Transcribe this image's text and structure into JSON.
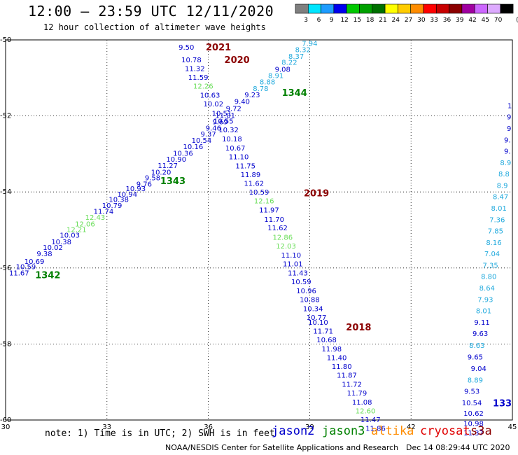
{
  "header": {
    "title": "12:00 – 23:59 UTC 12/11/2020",
    "subtitle": "12 hour collection of altimeter wave heights"
  },
  "legend": {
    "unit": "(ft)",
    "bins": [
      {
        "label": "3",
        "color": "#7f7f7f"
      },
      {
        "label": "6",
        "color": "#00e5ff"
      },
      {
        "label": "9",
        "color": "#1e9cff"
      },
      {
        "label": "12",
        "color": "#0000ee"
      },
      {
        "label": "15",
        "color": "#00c800"
      },
      {
        "label": "18",
        "color": "#00a000"
      },
      {
        "label": "21",
        "color": "#007000"
      },
      {
        "label": "24",
        "color": "#ffff00"
      },
      {
        "label": "27",
        "color": "#ffcc00"
      },
      {
        "label": "30",
        "color": "#ff8c00"
      },
      {
        "label": "33",
        "color": "#ff0000"
      },
      {
        "label": "36",
        "color": "#c80000"
      },
      {
        "label": "39",
        "color": "#8b0000"
      },
      {
        "label": "42",
        "color": "#a000a0"
      },
      {
        "label": "45",
        "color": "#cc66ff"
      },
      {
        "label": "70",
        "color": "#ddaaff"
      },
      {
        "label": "",
        "color": "#000000"
      }
    ]
  },
  "map": {
    "lon_ticks": [
      "30",
      "33",
      "36",
      "39",
      "42",
      "45"
    ],
    "lat_ticks": [
      "-50",
      "-52",
      "-54",
      "-56",
      "-58",
      "-60"
    ],
    "lon_range": [
      30,
      45
    ],
    "lat_range": [
      -50,
      -60
    ]
  },
  "colors": {
    "jason2": "#0000cc",
    "jason3": "#008000",
    "altika": "#ff8c00",
    "cryosat": "#e00000",
    "s3a": "#8b0000",
    "light_green": "#66dd55",
    "cyan": "#22aadd",
    "axis_grid": "#000000"
  },
  "tracks": [
    {
      "satellite": "jason3",
      "labels": [
        {
          "text": "1342",
          "lon": 31.25,
          "lat": -56.18
        },
        {
          "text": "1343",
          "lon": 34.95,
          "lat": -53.7
        },
        {
          "text": "1344",
          "lon": 38.55,
          "lat": -51.38
        }
      ],
      "points": [
        {
          "text": "11.67",
          "lon": 30.4,
          "lat": -56.12,
          "c": "jason2"
        },
        {
          "text": "10.59",
          "lon": 30.6,
          "lat": -55.96,
          "c": "jason2"
        },
        {
          "text": "10.69",
          "lon": 30.85,
          "lat": -55.82,
          "c": "jason2"
        },
        {
          "text": "9.38",
          "lon": 31.15,
          "lat": -55.62,
          "c": "jason2"
        },
        {
          "text": "10.02",
          "lon": 31.4,
          "lat": -55.45,
          "c": "jason2"
        },
        {
          "text": "10.38",
          "lon": 31.65,
          "lat": -55.3,
          "c": "jason2"
        },
        {
          "text": "10.03",
          "lon": 31.9,
          "lat": -55.13,
          "c": "jason2"
        },
        {
          "text": "12.21",
          "lon": 32.1,
          "lat": -54.98,
          "c": "light_green"
        },
        {
          "text": "12.06",
          "lon": 32.35,
          "lat": -54.83,
          "c": "light_green"
        },
        {
          "text": "12.43",
          "lon": 32.65,
          "lat": -54.66,
          "c": "light_green"
        },
        {
          "text": "11.74",
          "lon": 32.9,
          "lat": -54.5,
          "c": "jason2"
        },
        {
          "text": "10.79",
          "lon": 33.15,
          "lat": -54.35,
          "c": "jason2"
        },
        {
          "text": "10.38",
          "lon": 33.35,
          "lat": -54.19,
          "c": "jason2"
        },
        {
          "text": "10.94",
          "lon": 33.6,
          "lat": -54.05,
          "c": "jason2"
        },
        {
          "text": "10.93",
          "lon": 33.85,
          "lat": -53.9,
          "c": "jason2"
        },
        {
          "text": "9.76",
          "lon": 34.1,
          "lat": -53.78,
          "c": "jason2"
        },
        {
          "text": "9.58",
          "lon": 34.35,
          "lat": -53.62,
          "c": "jason2"
        },
        {
          "text": "10.20",
          "lon": 34.6,
          "lat": -53.47,
          "c": "jason2"
        },
        {
          "text": "11.27",
          "lon": 34.8,
          "lat": -53.3,
          "c": "jason2"
        },
        {
          "text": "10.90",
          "lon": 35.05,
          "lat": -53.13,
          "c": "jason2"
        },
        {
          "text": "10.36",
          "lon": 35.25,
          "lat": -52.97,
          "c": "jason2"
        },
        {
          "text": "10.16",
          "lon": 35.55,
          "lat": -52.8,
          "c": "jason2"
        },
        {
          "text": "10.54",
          "lon": 35.8,
          "lat": -52.63,
          "c": "jason2"
        },
        {
          "text": "9.37",
          "lon": 36.0,
          "lat": -52.47,
          "c": "jason2"
        },
        {
          "text": "9.46",
          "lon": 36.15,
          "lat": -52.31,
          "c": "jason2"
        },
        {
          "text": "9.69",
          "lon": 36.35,
          "lat": -52.15,
          "c": "jason2"
        },
        {
          "text": "11.01",
          "lon": 36.5,
          "lat": -51.98,
          "c": "jason2"
        },
        {
          "text": "9.72",
          "lon": 36.75,
          "lat": -51.8,
          "c": "jason2"
        },
        {
          "text": "9.40",
          "lon": 37.0,
          "lat": -51.61,
          "c": "jason2"
        },
        {
          "text": "9.23",
          "lon": 37.3,
          "lat": -51.44,
          "c": "jason2"
        },
        {
          "text": "8.78",
          "lon": 37.55,
          "lat": -51.27,
          "c": "cyan"
        },
        {
          "text": "8.88",
          "lon": 37.75,
          "lat": -51.1,
          "c": "cyan"
        },
        {
          "text": "8.91",
          "lon": 38.0,
          "lat": -50.93,
          "c": "cyan"
        },
        {
          "text": "9.08",
          "lon": 38.2,
          "lat": -50.76,
          "c": "jason2"
        },
        {
          "text": "8.22",
          "lon": 38.4,
          "lat": -50.58,
          "c": "cyan"
        },
        {
          "text": "8.37",
          "lon": 38.6,
          "lat": -50.42,
          "c": "cyan"
        },
        {
          "text": "8.32",
          "lon": 38.8,
          "lat": -50.25,
          "c": "cyan"
        },
        {
          "text": "7.94",
          "lon": 39.0,
          "lat": -50.08,
          "c": "cyan"
        }
      ]
    },
    {
      "satellite": "s3a",
      "labels": [
        {
          "text": "2021",
          "lon": 36.3,
          "lat": -50.18
        },
        {
          "text": "2020",
          "lon": 36.85,
          "lat": -50.52
        },
        {
          "text": "2019",
          "lon": 39.2,
          "lat": -54.02
        },
        {
          "text": "2018",
          "lon": 40.45,
          "lat": -57.55
        }
      ],
      "points": [
        {
          "text": "9.50",
          "lon": 35.35,
          "lat": -50.18,
          "c": "jason2"
        },
        {
          "text": "10.78",
          "lon": 35.5,
          "lat": -50.52,
          "c": "jason2"
        },
        {
          "text": "11.32",
          "lon": 35.6,
          "lat": -50.75,
          "c": "jason2"
        },
        {
          "text": "11.59",
          "lon": 35.7,
          "lat": -50.98,
          "c": "jason2"
        },
        {
          "text": "12.26",
          "lon": 35.85,
          "lat": -51.21,
          "c": "light_green"
        },
        {
          "text": "10.63",
          "lon": 36.05,
          "lat": -51.45,
          "c": "jason2"
        },
        {
          "text": "10.02",
          "lon": 36.15,
          "lat": -51.68,
          "c": "jason2"
        },
        {
          "text": "10.51",
          "lon": 36.4,
          "lat": -51.92,
          "c": "jason2"
        },
        {
          "text": "10.55",
          "lon": 36.45,
          "lat": -52.13,
          "c": "jason2"
        },
        {
          "text": "10.32",
          "lon": 36.6,
          "lat": -52.36,
          "c": "jason2"
        },
        {
          "text": "10.18",
          "lon": 36.7,
          "lat": -52.6,
          "c": "jason2"
        },
        {
          "text": "10.67",
          "lon": 36.8,
          "lat": -52.84,
          "c": "jason2"
        },
        {
          "text": "11.10",
          "lon": 36.9,
          "lat": -53.07,
          "c": "jason2"
        },
        {
          "text": "11.75",
          "lon": 37.1,
          "lat": -53.31,
          "c": "jason2"
        },
        {
          "text": "11.89",
          "lon": 37.25,
          "lat": -53.54,
          "c": "jason2"
        },
        {
          "text": "11.62",
          "lon": 37.35,
          "lat": -53.77,
          "c": "jason2"
        },
        {
          "text": "10.59",
          "lon": 37.5,
          "lat": -54.0,
          "c": "jason2"
        },
        {
          "text": "12.16",
          "lon": 37.65,
          "lat": -54.23,
          "c": "light_green"
        },
        {
          "text": "11.97",
          "lon": 37.8,
          "lat": -54.47,
          "c": "jason2"
        },
        {
          "text": "11.70",
          "lon": 37.95,
          "lat": -54.71,
          "c": "jason2"
        },
        {
          "text": "11.62",
          "lon": 38.05,
          "lat": -54.94,
          "c": "jason2"
        },
        {
          "text": "12.86",
          "lon": 38.2,
          "lat": -55.18,
          "c": "light_green"
        },
        {
          "text": "12.03",
          "lon": 38.3,
          "lat": -55.41,
          "c": "light_green"
        },
        {
          "text": "11.10",
          "lon": 38.45,
          "lat": -55.65,
          "c": "jason2"
        },
        {
          "text": "11.01",
          "lon": 38.5,
          "lat": -55.88,
          "c": "jason2"
        },
        {
          "text": "11.43",
          "lon": 38.65,
          "lat": -56.12,
          "c": "jason2"
        },
        {
          "text": "10.59",
          "lon": 38.75,
          "lat": -56.35,
          "c": "jason2"
        },
        {
          "text": "10.96",
          "lon": 38.9,
          "lat": -56.59,
          "c": "jason2"
        },
        {
          "text": "10.88",
          "lon": 39.0,
          "lat": -56.82,
          "c": "jason2"
        },
        {
          "text": "10.34",
          "lon": 39.1,
          "lat": -57.06,
          "c": "jason2"
        },
        {
          "text": "10.77",
          "lon": 39.2,
          "lat": -57.29,
          "c": "jason2"
        },
        {
          "text": "10.10",
          "lon": 39.25,
          "lat": -57.42,
          "c": "jason2"
        },
        {
          "text": "11.71",
          "lon": 39.4,
          "lat": -57.65,
          "c": "jason2"
        },
        {
          "text": "10.68",
          "lon": 39.5,
          "lat": -57.88,
          "c": "jason2"
        },
        {
          "text": "11.98",
          "lon": 39.65,
          "lat": -58.12,
          "c": "jason2"
        },
        {
          "text": "11.40",
          "lon": 39.8,
          "lat": -58.35,
          "c": "jason2"
        },
        {
          "text": "11.80",
          "lon": 39.95,
          "lat": -58.58,
          "c": "jason2"
        },
        {
          "text": "11.87",
          "lon": 40.1,
          "lat": -58.81,
          "c": "jason2"
        },
        {
          "text": "11.72",
          "lon": 40.25,
          "lat": -59.05,
          "c": "jason2"
        },
        {
          "text": "11.79",
          "lon": 40.4,
          "lat": -59.28,
          "c": "jason2"
        },
        {
          "text": "11.08",
          "lon": 40.55,
          "lat": -59.52,
          "c": "jason2"
        },
        {
          "text": "12.60",
          "lon": 40.65,
          "lat": -59.75,
          "c": "light_green"
        },
        {
          "text": "11.47",
          "lon": 40.8,
          "lat": -59.98,
          "c": "jason2"
        },
        {
          "text": "11.86",
          "lon": 40.95,
          "lat": -60.21,
          "c": "jason2"
        }
      ]
    },
    {
      "satellite": "jason2",
      "labels": [
        {
          "text": "133",
          "lon": 44.7,
          "lat": -59.55
        }
      ],
      "points": [
        {
          "text": "10.54",
          "lon": 43.8,
          "lat": -59.54,
          "c": "jason2"
        },
        {
          "text": "10.62",
          "lon": 43.85,
          "lat": -59.82,
          "c": "jason2"
        },
        {
          "text": "10.98",
          "lon": 43.85,
          "lat": -60.08,
          "c": "jason2"
        },
        {
          "text": "11.37",
          "lon": 43.85,
          "lat": -60.33,
          "c": "jason2"
        },
        {
          "text": "9.53",
          "lon": 43.8,
          "lat": -59.24,
          "c": "jason2"
        },
        {
          "text": "8.89",
          "lon": 43.9,
          "lat": -58.94,
          "c": "cyan"
        },
        {
          "text": "9.04",
          "lon": 44.0,
          "lat": -58.64,
          "c": "jason2"
        },
        {
          "text": "9.65",
          "lon": 43.9,
          "lat": -58.33,
          "c": "jason2"
        },
        {
          "text": "8.63",
          "lon": 43.95,
          "lat": -58.03,
          "c": "cyan"
        },
        {
          "text": "9.63",
          "lon": 44.05,
          "lat": -57.72,
          "c": "jason2"
        },
        {
          "text": "9.11",
          "lon": 44.1,
          "lat": -57.42,
          "c": "jason2"
        },
        {
          "text": "8.01",
          "lon": 44.15,
          "lat": -57.12,
          "c": "cyan"
        },
        {
          "text": "7.93",
          "lon": 44.2,
          "lat": -56.82,
          "c": "cyan"
        },
        {
          "text": "8.64",
          "lon": 44.25,
          "lat": -56.52,
          "c": "cyan"
        },
        {
          "text": "8.80",
          "lon": 44.3,
          "lat": -56.22,
          "c": "cyan"
        },
        {
          "text": "7.35",
          "lon": 44.35,
          "lat": -55.92,
          "c": "cyan"
        },
        {
          "text": "7.04",
          "lon": 44.4,
          "lat": -55.62,
          "c": "cyan"
        },
        {
          "text": "8.16",
          "lon": 44.45,
          "lat": -55.32,
          "c": "cyan"
        },
        {
          "text": "7.85",
          "lon": 44.5,
          "lat": -55.02,
          "c": "cyan"
        },
        {
          "text": "7.36",
          "lon": 44.55,
          "lat": -54.72,
          "c": "cyan"
        },
        {
          "text": "8.01",
          "lon": 44.6,
          "lat": -54.42,
          "c": "cyan"
        },
        {
          "text": "8.47",
          "lon": 44.65,
          "lat": -54.12,
          "c": "cyan"
        },
        {
          "text": "8.9",
          "lon": 44.7,
          "lat": -53.82,
          "c": "cyan"
        },
        {
          "text": "8.8",
          "lon": 44.75,
          "lat": -53.52,
          "c": "cyan"
        },
        {
          "text": "8.9",
          "lon": 44.8,
          "lat": -53.22,
          "c": "cyan"
        },
        {
          "text": "9.",
          "lon": 44.85,
          "lat": -52.92,
          "c": "jason2"
        },
        {
          "text": "9.",
          "lon": 44.85,
          "lat": -52.62,
          "c": "jason2"
        },
        {
          "text": "9",
          "lon": 44.9,
          "lat": -52.32,
          "c": "jason2"
        },
        {
          "text": "9",
          "lon": 44.9,
          "lat": -52.02,
          "c": "jason2"
        },
        {
          "text": "1",
          "lon": 44.92,
          "lat": -51.72,
          "c": "jason2"
        }
      ]
    }
  ],
  "footer": {
    "note": "note: 1) Time is in UTC; 2) SWH is in feet",
    "satellites": [
      {
        "name": "jason2",
        "color": "#0000cc"
      },
      {
        "name": "jason3",
        "color": "#008000"
      },
      {
        "name": "altika",
        "color": "#ff8c00"
      },
      {
        "name": "cryosat",
        "color": "#e00000"
      },
      {
        "name": "s3a",
        "color": "#8b0000"
      }
    ],
    "credit": "NOAA/NESDIS Center for Satellite Applications and Research",
    "timestamp": "Dec 14 08:29:44 UTC 2020"
  }
}
